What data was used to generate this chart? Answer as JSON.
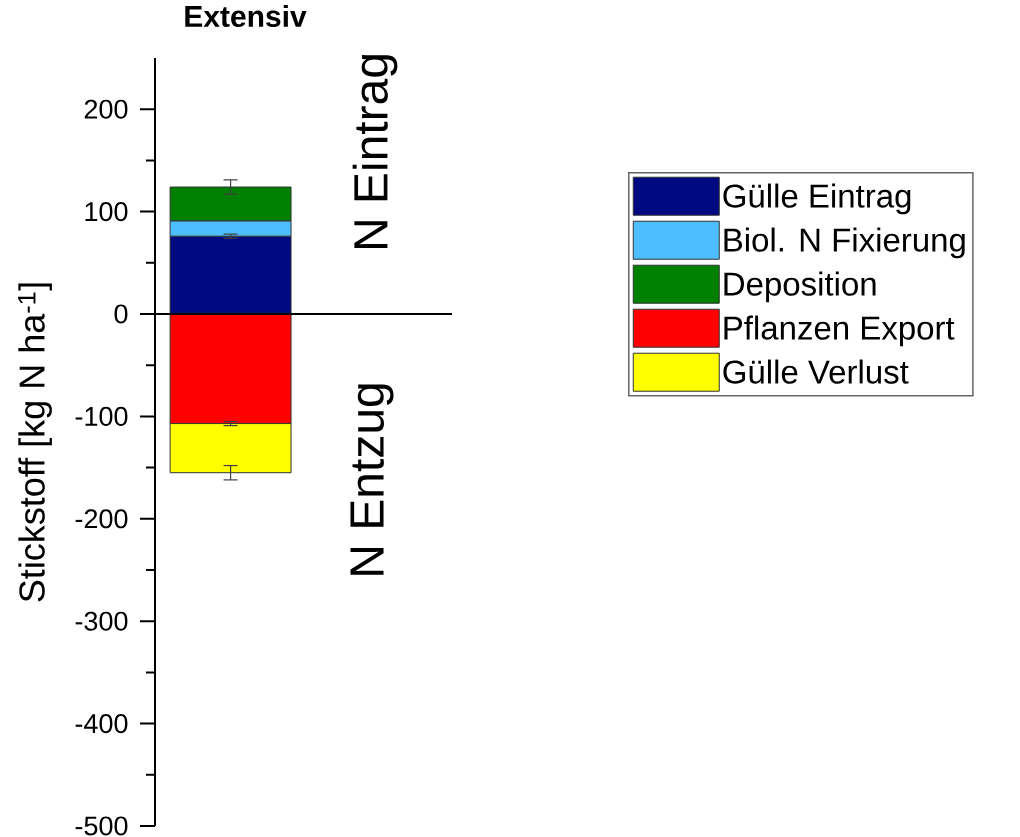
{
  "chart_data": {
    "type": "bar",
    "title": "Extensiv",
    "ylabel": "Stickstoff [kg N ha$^{-1}$]",
    "categories": [
      null
    ],
    "series": [
      {
        "name": "Gülle Eintrag",
        "color": "#000a80",
        "values": [
          76
        ],
        "errors": [
          2
        ]
      },
      {
        "name": "Biol. N Fixierung",
        "color": "#4dbeff",
        "values": [
          15
        ]
      },
      {
        "name": "Deposition",
        "color": "#008000",
        "values": [
          33
        ],
        "errors": [
          7
        ]
      },
      {
        "name": "Pflanzen Export",
        "color": "#ff0000",
        "values": [
          -107
        ],
        "errors": [
          2
        ]
      },
      {
        "name": "Gülle Verlust",
        "color": "#ffff00",
        "values": [
          -48
        ],
        "errors": [
          7
        ]
      }
    ],
    "stacked": true,
    "ylim": [
      -500,
      250
    ],
    "yticks": [
      -500,
      {
        "value": -450,
        "label": null
      },
      -400,
      {
        "value": -350,
        "label": null
      },
      -300,
      {
        "value": -250,
        "label": null
      },
      -200,
      {
        "value": -150,
        "label": null
      },
      -100,
      {
        "value": -50,
        "label": null
      },
      0,
      {
        "value": 50,
        "label": null
      },
      100,
      {
        "value": 150,
        "label": null
      },
      200
    ],
    "ref_lines": [
      {
        "axis": "y",
        "value": 0,
        "color": "#000000"
      }
    ],
    "annotations": [
      "N Eintrag",
      "N Entzug"
    ],
    "legend": "right"
  }
}
